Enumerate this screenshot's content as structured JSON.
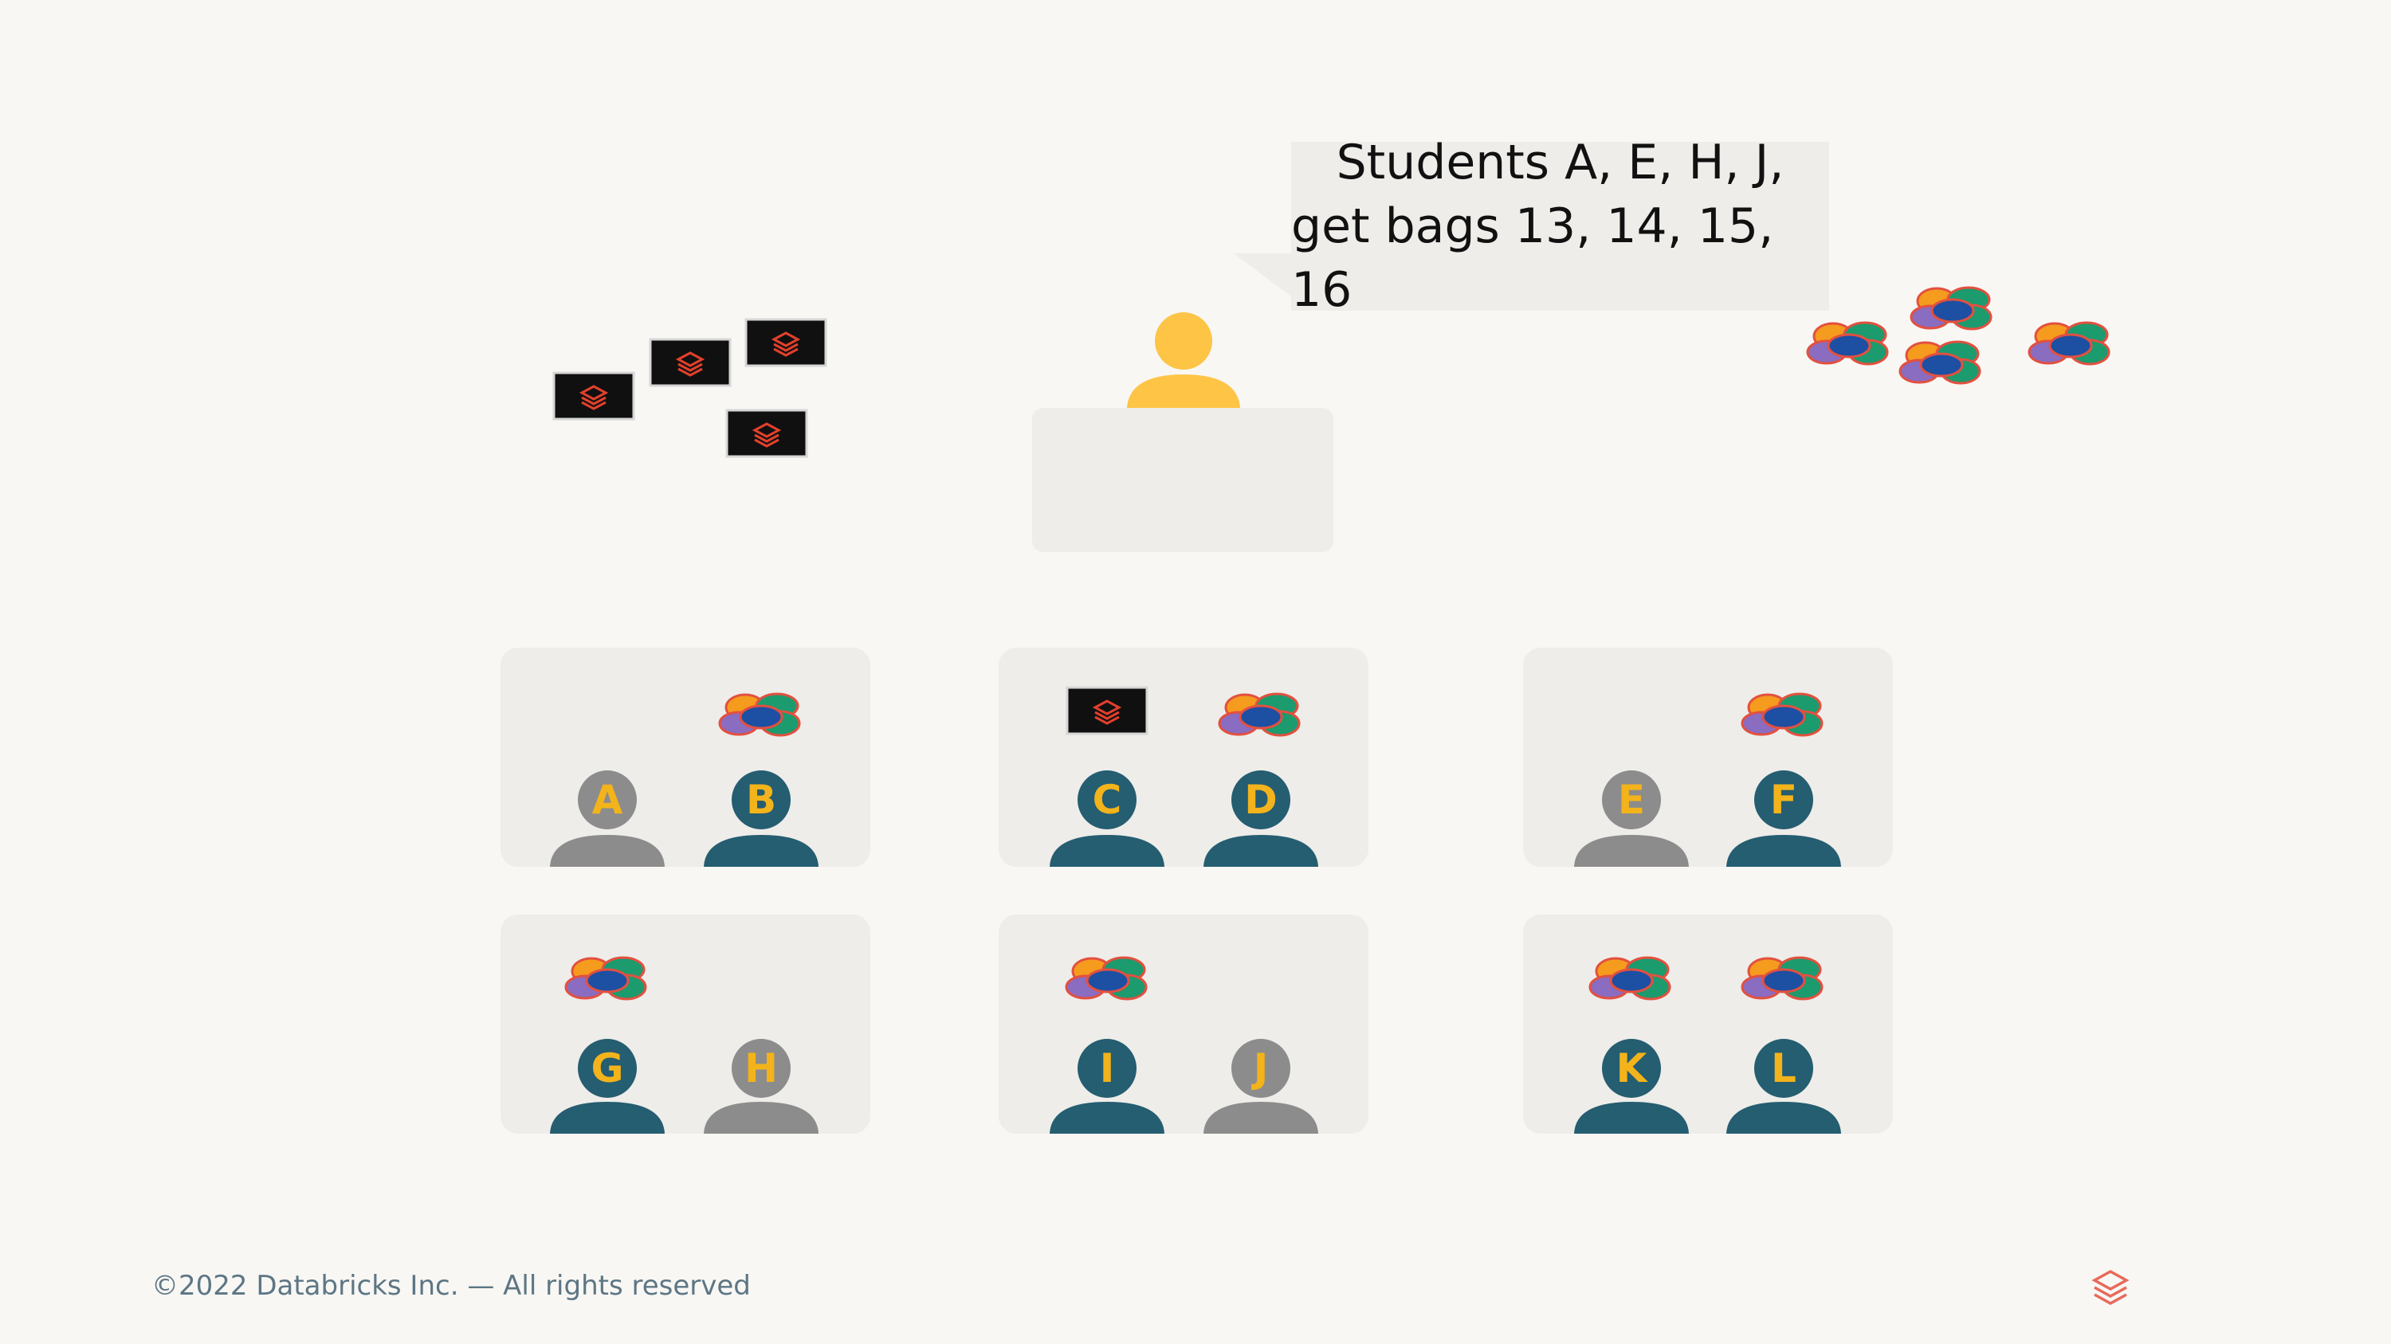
{
  "speech": {
    "line1": "Students A, E, H, J,",
    "line2": "get bags 13, 14, 15, 16"
  },
  "students": [
    {
      "letter": "A",
      "state": "absent"
    },
    {
      "letter": "B",
      "state": "present"
    },
    {
      "letter": "C",
      "state": "present"
    },
    {
      "letter": "D",
      "state": "present"
    },
    {
      "letter": "E",
      "state": "absent"
    },
    {
      "letter": "F",
      "state": "present"
    },
    {
      "letter": "G",
      "state": "present"
    },
    {
      "letter": "H",
      "state": "absent"
    },
    {
      "letter": "I",
      "state": "present"
    },
    {
      "letter": "J",
      "state": "absent"
    },
    {
      "letter": "K",
      "state": "present"
    },
    {
      "letter": "L",
      "state": "present"
    }
  ],
  "footer": {
    "copyright": "©2022 Databricks Inc. — All rights reserved"
  },
  "colors": {
    "background": "#f8f7f4",
    "desk": "#eeede9",
    "present_student": "#255d71",
    "absent_student": "#8c8c8c",
    "letter": "#f3b31b",
    "teacher": "#fdc446",
    "bag": "#101010",
    "bag_logo": "#e2402c",
    "footer_text": "#5d7684",
    "brand_logo": "#e86a5a"
  },
  "icons": {
    "bag": "databricks-bag-icon",
    "candy": "candy-pile-icon",
    "brand": "databricks-logo-icon"
  }
}
